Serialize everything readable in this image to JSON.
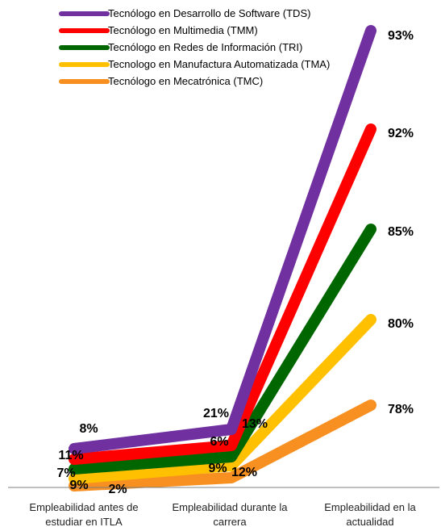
{
  "chart_data": {
    "type": "line",
    "title": "",
    "xlabel": "",
    "ylabel": "",
    "categories": [
      [
        "Empleabilidad antes de",
        "estudiar en ITLA"
      ],
      [
        "Empleabilidad durante la",
        "carrera"
      ],
      [
        "Empleabilidad en la",
        "actualidad"
      ]
    ],
    "legend_position": "top",
    "grid": false,
    "series": [
      {
        "name": "Tecnólogo en Desarrollo de Software (TDS)",
        "color": "#7030a0",
        "values": [
          8,
          21,
          93
        ],
        "labels": [
          "8%",
          "21%",
          "93%"
        ]
      },
      {
        "name": "Tecnólogo en Multimedia (TMM)",
        "color": "#ff0000",
        "values": [
          11,
          6,
          92
        ],
        "labels": [
          "11%",
          "6%",
          "92%"
        ]
      },
      {
        "name": "Tecnólogo en Redes de Información (TRI)",
        "color": "#006600",
        "values": [
          7,
          13,
          85
        ],
        "labels": [
          "7%",
          "13%",
          "85%"
        ]
      },
      {
        "name": "Tecnologo en Manufactura Automatizada (TMA)",
        "color": "#ffc000",
        "values": [
          9,
          9,
          80
        ],
        "labels": [
          "9%",
          "9%",
          "80%"
        ]
      },
      {
        "name": "Tecnólogo en Mecatrónica (TMC)",
        "color": "#f79020",
        "values": [
          2,
          12,
          78
        ],
        "labels": [
          "2%",
          "12%",
          "78%"
        ]
      }
    ]
  }
}
